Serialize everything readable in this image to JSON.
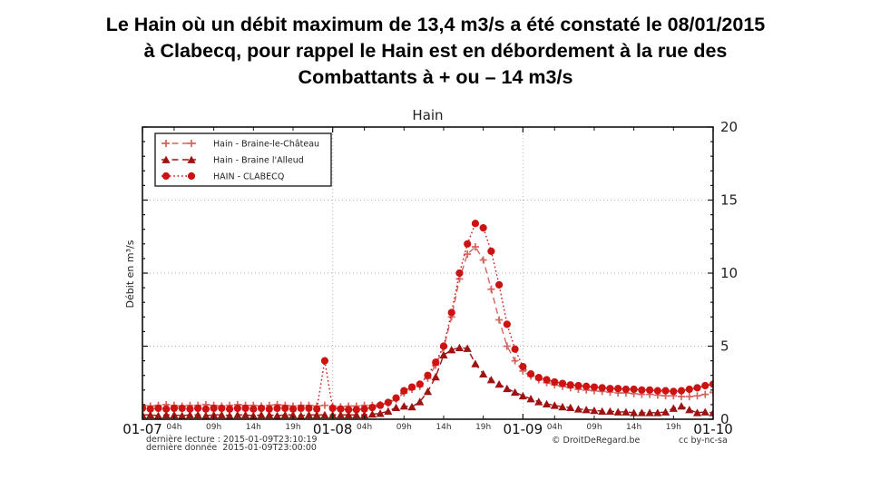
{
  "header": {
    "line1": "Le Hain où un débit maximum de 13,4 m3/s a été constaté le 08/01/2015",
    "line2": "à Clabecq, pour rappel le Hain est en débordement à la rue des",
    "line3": "Combattants à + ou – 14 m3/s"
  },
  "chart_data": {
    "type": "line",
    "title": "Hain",
    "ylabel": "Débit en m³/s",
    "ylim": [
      0,
      20
    ],
    "yticks": [
      0,
      5,
      10,
      15,
      20
    ],
    "x_span_hours": 72,
    "grid": "dotted",
    "grid_color": "#b0b0b0",
    "legend_position": "top-left",
    "x_day_ticks": [
      {
        "t": 0,
        "label": "01-07"
      },
      {
        "t": 24,
        "label": "01-08"
      },
      {
        "t": 48,
        "label": "01-09"
      },
      {
        "t": 72,
        "label": "01-10"
      }
    ],
    "x_hour_ticks": [
      {
        "t": 4,
        "label": "04h"
      },
      {
        "t": 9,
        "label": "09h"
      },
      {
        "t": 14,
        "label": "14h"
      },
      {
        "t": 19,
        "label": "19h"
      },
      {
        "t": 28,
        "label": "04h"
      },
      {
        "t": 33,
        "label": "09h"
      },
      {
        "t": 38,
        "label": "14h"
      },
      {
        "t": 43,
        "label": "19h"
      },
      {
        "t": 52,
        "label": "04h"
      },
      {
        "t": 57,
        "label": "09h"
      },
      {
        "t": 62,
        "label": "14h"
      },
      {
        "t": 67,
        "label": "19h"
      }
    ],
    "grid_vertical_t": [
      24,
      48
    ],
    "grid_horizontal_y": [
      5,
      10,
      15
    ],
    "series": [
      {
        "name": "Hain - Braine-le-Château",
        "color": "#d6635f",
        "marker": "plus",
        "linestyle": "dashed",
        "max_value": 11.8,
        "values": [
          0.95,
          0.9,
          0.95,
          1.0,
          0.95,
          0.9,
          0.95,
          0.95,
          1.0,
          0.95,
          0.9,
          0.95,
          1.0,
          0.95,
          0.95,
          0.9,
          0.95,
          1.0,
          0.95,
          0.9,
          0.95,
          0.95,
          0.9,
          0.95,
          0.9,
          0.85,
          0.9,
          0.9,
          0.95,
          0.95,
          1.0,
          1.1,
          1.35,
          1.8,
          2.05,
          2.25,
          2.8,
          3.7,
          4.9,
          7.0,
          9.6,
          11.3,
          11.8,
          10.9,
          8.9,
          6.8,
          5.0,
          4.0,
          3.3,
          2.95,
          2.7,
          2.5,
          2.35,
          2.25,
          2.15,
          2.05,
          2.0,
          1.95,
          1.9,
          1.85,
          1.8,
          1.8,
          1.75,
          1.7,
          1.7,
          1.65,
          1.6,
          1.6,
          1.55,
          1.55,
          1.6,
          1.7,
          1.85
        ]
      },
      {
        "name": "Hain - Braine l'Alleud",
        "color": "#9e1212",
        "marker": "triangle",
        "linestyle": "dashed",
        "max_value": 4.9,
        "values": [
          0.3,
          0.3,
          0.25,
          0.3,
          0.3,
          0.25,
          0.3,
          0.3,
          0.25,
          0.3,
          0.3,
          0.25,
          0.3,
          0.3,
          0.25,
          0.3,
          0.3,
          0.25,
          0.3,
          0.3,
          0.25,
          0.3,
          0.3,
          0.3,
          0.3,
          0.3,
          0.3,
          0.3,
          0.3,
          0.35,
          0.4,
          0.55,
          0.8,
          0.9,
          0.85,
          1.2,
          1.9,
          2.9,
          4.4,
          4.75,
          4.9,
          4.85,
          3.8,
          3.1,
          2.7,
          2.4,
          2.1,
          1.85,
          1.6,
          1.4,
          1.2,
          1.05,
          0.95,
          0.85,
          0.8,
          0.7,
          0.65,
          0.6,
          0.55,
          0.55,
          0.5,
          0.5,
          0.45,
          0.45,
          0.45,
          0.45,
          0.5,
          0.75,
          0.9,
          0.65,
          0.45,
          0.5,
          0.45
        ]
      },
      {
        "name": "HAIN - CLABECQ",
        "color": "#cd1212",
        "marker": "circle",
        "linestyle": "dotted",
        "max_value": 13.4,
        "values": [
          0.75,
          0.7,
          0.75,
          0.7,
          0.75,
          0.75,
          0.7,
          0.75,
          0.7,
          0.75,
          0.75,
          0.7,
          0.75,
          0.75,
          0.7,
          0.75,
          0.7,
          0.75,
          0.75,
          0.7,
          0.75,
          0.75,
          0.7,
          4.0,
          0.75,
          0.7,
          0.65,
          0.65,
          0.7,
          0.8,
          0.95,
          1.15,
          1.45,
          1.95,
          2.2,
          2.4,
          3.0,
          3.9,
          5.0,
          7.3,
          10.0,
          12.0,
          13.4,
          13.1,
          11.5,
          9.2,
          6.5,
          4.8,
          3.6,
          3.1,
          2.85,
          2.7,
          2.55,
          2.45,
          2.35,
          2.3,
          2.25,
          2.2,
          2.15,
          2.1,
          2.1,
          2.05,
          2.05,
          2.0,
          2.0,
          1.95,
          1.95,
          1.9,
          1.95,
          2.05,
          2.15,
          2.3,
          2.4
        ]
      }
    ]
  },
  "footer": {
    "left1": "dernière lecture : 2015-01-09T23:10:19",
    "left2": "dernière donnée  2015-01-09T23:00:00",
    "copyright": "© DroitDeRegard.be",
    "license": "cc by-nc-sa"
  }
}
